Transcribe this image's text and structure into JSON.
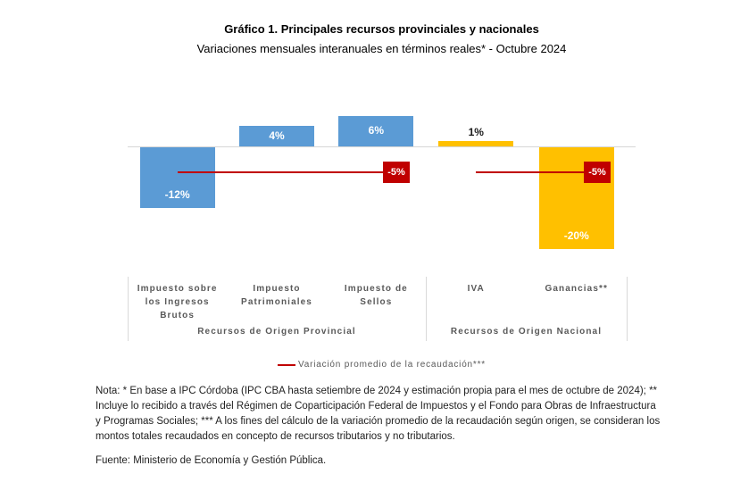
{
  "header": {
    "title": "Gráfico 1. Principales recursos provinciales y nacionales",
    "subtitle": "Variaciones mensuales interanuales en términos reales* - Octubre 2024"
  },
  "chart_data": {
    "type": "bar",
    "title": "Gráfico 1. Principales recursos provinciales y nacionales",
    "subtitle": "Variaciones mensuales interanuales en términos reales* - Octubre 2024",
    "unit": "%",
    "axis": {
      "zero_line": true,
      "y_implied_range": [
        -22,
        10
      ],
      "gridlines": false
    },
    "legend": {
      "label": "Variación promedio de la recaudación***",
      "position": "bottom",
      "line_color": "#c00000"
    },
    "colors": {
      "provincial": "#5b9bd5",
      "nacional": "#ffc000",
      "average_line": "#c00000",
      "average_box": "#c00000"
    },
    "groups": [
      {
        "slug": "provincial",
        "name": "Recursos de Origen Provincial",
        "bar_color": "#5b9bd5",
        "average": {
          "value": -5,
          "label": "-5%"
        },
        "items": [
          {
            "slug": "ingresos-brutos",
            "label": "Impuesto sobre los Ingresos Brutos",
            "value": -12,
            "value_label": "-12%",
            "label_position": "inside-bottom",
            "label_color": "#ffffff"
          },
          {
            "slug": "patrimoniales",
            "label": "Impuesto Patrimoniales",
            "value": 4,
            "value_label": "4%",
            "label_position": "inside-center",
            "label_color": "#ffffff"
          },
          {
            "slug": "sellos",
            "label": "Impuesto de Sellos",
            "value": 6,
            "value_label": "6%",
            "label_position": "inside-center",
            "label_color": "#ffffff"
          }
        ]
      },
      {
        "slug": "nacional",
        "name": "Recursos de Origen Nacional",
        "bar_color": "#ffc000",
        "average": {
          "value": -5,
          "label": "-5%"
        },
        "items": [
          {
            "slug": "iva",
            "label": "IVA",
            "value": 1,
            "value_label": "1%",
            "label_position": "above",
            "label_color": "#1a1a1a"
          },
          {
            "slug": "ganancias",
            "label": "Ganancias**",
            "value": -20,
            "value_label": "-20%",
            "label_position": "inside-bottom",
            "label_color": "#ffffff"
          }
        ]
      }
    ]
  },
  "notes": {
    "note": "Nota: * En base a IPC Córdoba (IPC CBA hasta setiembre de 2024 y estimación propia para el mes de octubre de 2024); ** Incluye lo recibido a través del Régimen de Coparticipación Federal de Impuestos y el Fondo para Obras de Infraestructura y Programas Sociales; *** A los fines del cálculo de la variación promedio de la recaudación según origen, se consideran los montos totales recaudados en concepto de recursos tributarios y no tributarios.",
    "source": "Fuente: Ministerio de Economía y Gestión Pública."
  }
}
